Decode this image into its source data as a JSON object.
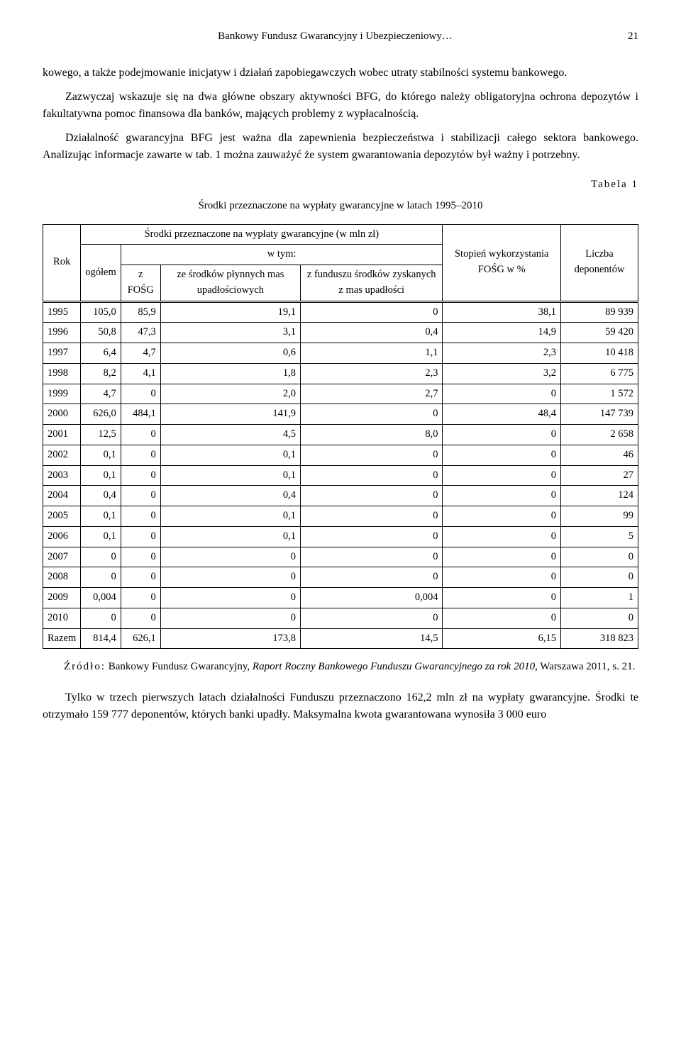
{
  "header": {
    "title": "Bankowy Fundusz Gwarancyjny i Ubezpieczeniowy…",
    "page": "21"
  },
  "paragraphs": {
    "p1": "kowego, a także podejmowanie inicjatyw i działań zapobiegawczych wobec utraty stabilności systemu bankowego.",
    "p2": "Zazwyczaj wskazuje się na dwa główne obszary aktywności BFG, do którego należy obligatoryjna ochrona depozytów i fakultatywna pomoc finansowa dla banków, mających problemy z wypłacalnością.",
    "p3": "Działalność gwarancyjna BFG jest ważna dla zapewnienia bezpieczeństwa i stabilizacji całego sektora bankowego. Analizując informacje zawarte w tab. 1 można zauważyć że system gwarantowania depozytów był ważny i potrzebny.",
    "p_bottom": "Tylko w trzech pierwszych latach działalności Funduszu przeznaczono 162,2 mln zł na wypłaty gwarancyjne. Środki te otrzymało 159 777 deponentów, których banki upadły. Maksymalna kwota gwarantowana wynosiła 3 000 euro"
  },
  "table": {
    "label": "Tabela 1",
    "caption": "Środki przeznaczone na wypłaty gwarancyjne w latach 1995–2010",
    "headers": {
      "rok": "Rok",
      "group_top": "Środki przeznaczone na wypłaty gwarancyjne (w mln zł)",
      "ogolem": "ogółem",
      "wtym": "w tym:",
      "zfosg": "z FOŚG",
      "ze_srodkow": "ze środków płynnych mas upadłościowych",
      "z_funduszu": "z funduszu środków zyskanych z mas upadłości",
      "stopien": "Stopień wykorzystania FOŚG w %",
      "liczba": "Liczba deponentów"
    },
    "rows": [
      [
        "1995",
        "105,0",
        "85,9",
        "19,1",
        "0",
        "38,1",
        "89 939"
      ],
      [
        "1996",
        "50,8",
        "47,3",
        "3,1",
        "0,4",
        "14,9",
        "59 420"
      ],
      [
        "1997",
        "6,4",
        "4,7",
        "0,6",
        "1,1",
        "2,3",
        "10 418"
      ],
      [
        "1998",
        "8,2",
        "4,1",
        "1,8",
        "2,3",
        "3,2",
        "6 775"
      ],
      [
        "1999",
        "4,7",
        "0",
        "2,0",
        "2,7",
        "0",
        "1 572"
      ],
      [
        "2000",
        "626,0",
        "484,1",
        "141,9",
        "0",
        "48,4",
        "147 739"
      ],
      [
        "2001",
        "12,5",
        "0",
        "4,5",
        "8,0",
        "0",
        "2 658"
      ],
      [
        "2002",
        "0,1",
        "0",
        "0,1",
        "0",
        "0",
        "46"
      ],
      [
        "2003",
        "0,1",
        "0",
        "0,1",
        "0",
        "0",
        "27"
      ],
      [
        "2004",
        "0,4",
        "0",
        "0,4",
        "0",
        "0",
        "124"
      ],
      [
        "2005",
        "0,1",
        "0",
        "0,1",
        "0",
        "0",
        "99"
      ],
      [
        "2006",
        "0,1",
        "0",
        "0,1",
        "0",
        "0",
        "5"
      ],
      [
        "2007",
        "0",
        "0",
        "0",
        "0",
        "0",
        "0"
      ],
      [
        "2008",
        "0",
        "0",
        "0",
        "0",
        "0",
        "0"
      ],
      [
        "2009",
        "0,004",
        "0",
        "0",
        "0,004",
        "0",
        "1"
      ],
      [
        "2010",
        "0",
        "0",
        "0",
        "0",
        "0",
        "0"
      ],
      [
        "Razem",
        "814,4",
        "626,1",
        "173,8",
        "14,5",
        "6,15",
        "318 823"
      ]
    ]
  },
  "source": {
    "label": "Źródło:",
    "before_italic": " Bankowy Fundusz Gwarancyjny, ",
    "italic": "Raport Roczny Bankowego Funduszu Gwarancyjnego za rok 2010",
    "after_italic": ", Warszawa 2011, s. 21."
  }
}
